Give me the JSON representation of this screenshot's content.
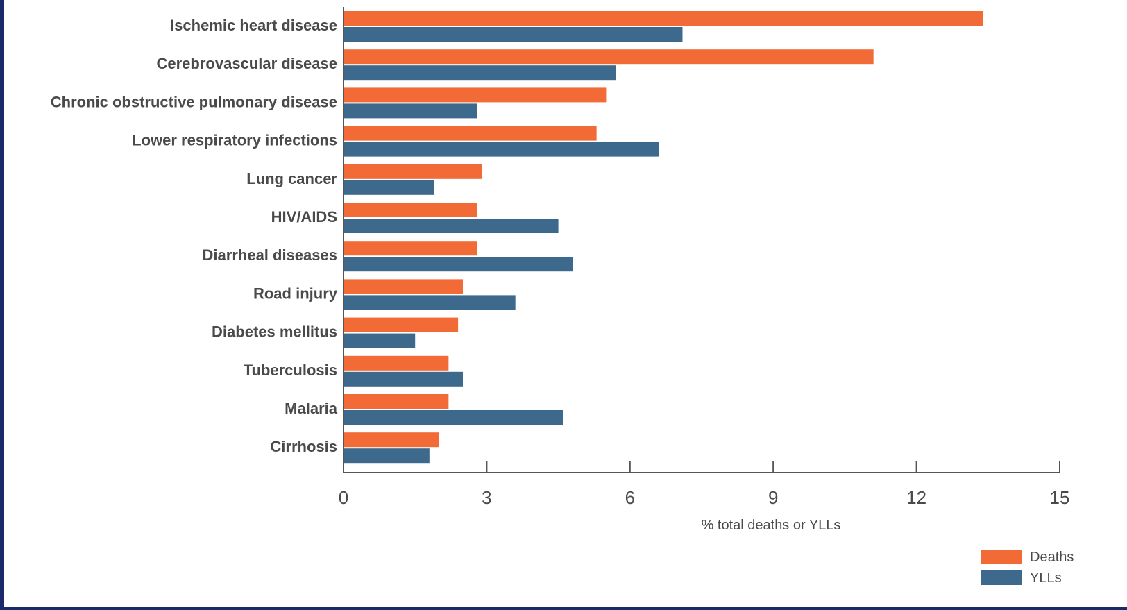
{
  "colors": {
    "background": "#1b2a6b",
    "panel": "#ffffff",
    "deaths": "#f26a35",
    "ylls": "#3d6a8c",
    "axis": "#555555",
    "text": "#4a4a4a"
  },
  "chart_data": {
    "type": "bar",
    "orientation": "horizontal",
    "title": "",
    "xlabel": "% total deaths or YLLs",
    "ylabel": "",
    "xlim": [
      0,
      15
    ],
    "xticks": [
      0,
      3,
      6,
      9,
      12,
      15
    ],
    "grid": false,
    "legend_position": "bottom-right",
    "categories": [
      "Ischemic heart disease",
      "Cerebrovascular disease",
      "Chronic obstructive pulmonary disease",
      "Lower respiratory infections",
      "Lung cancer",
      "HIV/AIDS",
      "Diarrheal diseases",
      "Road injury",
      "Diabetes mellitus",
      "Tuberculosis",
      "Malaria",
      "Cirrhosis"
    ],
    "series": [
      {
        "name": "Deaths",
        "color": "#f26a35",
        "values": [
          13.4,
          11.1,
          5.5,
          5.3,
          2.9,
          2.8,
          2.8,
          2.5,
          2.4,
          2.2,
          2.2,
          2.0
        ]
      },
      {
        "name": "YLLs",
        "color": "#3d6a8c",
        "values": [
          7.1,
          5.7,
          2.8,
          6.6,
          1.9,
          4.5,
          4.8,
          3.6,
          1.5,
          2.5,
          4.6,
          1.8
        ]
      }
    ]
  }
}
